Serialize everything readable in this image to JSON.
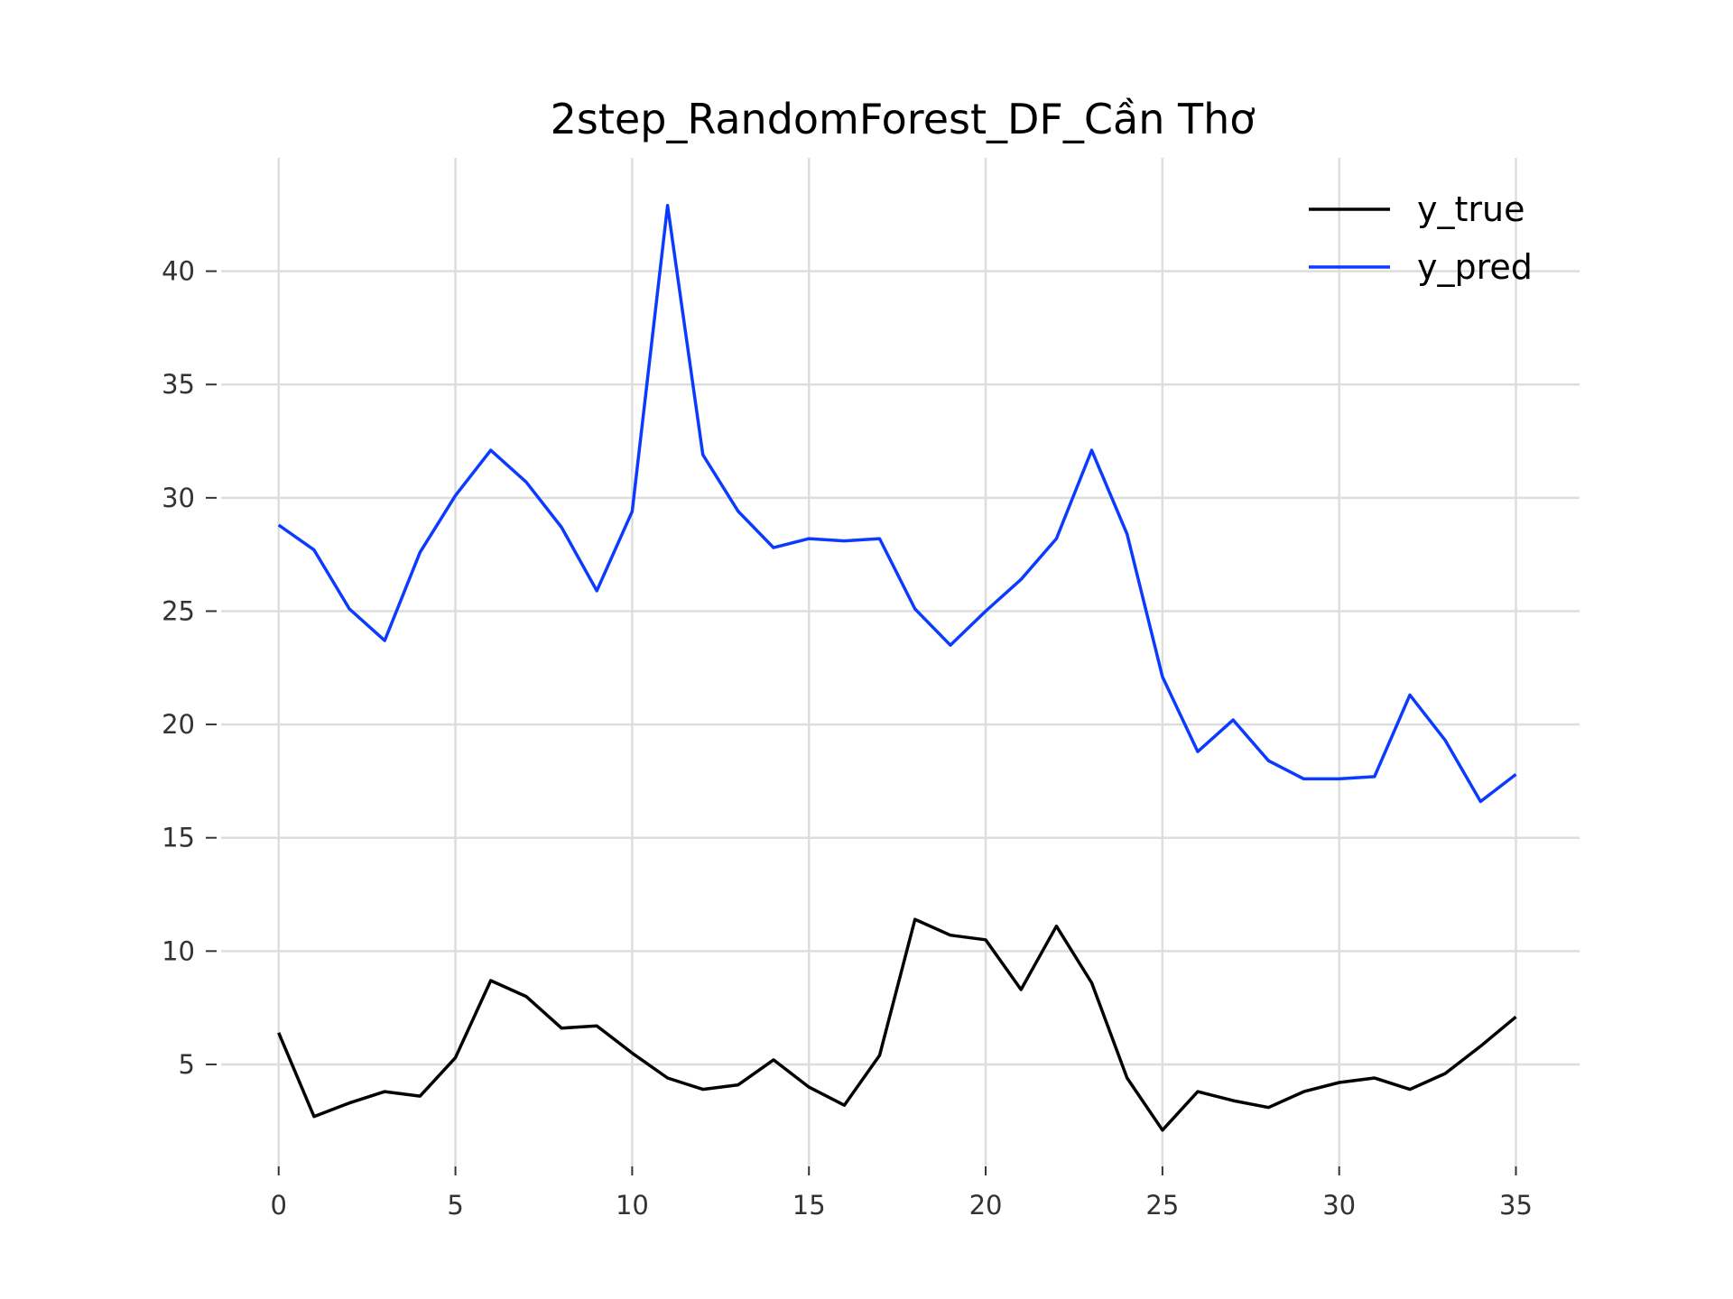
{
  "chart_data": {
    "type": "line",
    "title": "2step_RandomForest_DF_Cần Thơ",
    "xlabel": "",
    "ylabel": "",
    "x": [
      0,
      1,
      2,
      3,
      4,
      5,
      6,
      7,
      8,
      9,
      10,
      11,
      12,
      13,
      14,
      15,
      16,
      17,
      18,
      19,
      20,
      21,
      22,
      23,
      24,
      25,
      26,
      27,
      28,
      29,
      30,
      31,
      32,
      33,
      34,
      35
    ],
    "xticks": [
      0,
      5,
      10,
      15,
      20,
      25,
      30,
      35
    ],
    "yticks": [
      5,
      10,
      15,
      20,
      25,
      30,
      35,
      40
    ],
    "xlim": [
      -1.5,
      36.8
    ],
    "ylim": [
      0.5,
      45
    ],
    "grid": true,
    "legend_position": "top-right",
    "series": [
      {
        "name": "y_true",
        "color": "#000000",
        "values": [
          6.4,
          2.7,
          3.3,
          3.8,
          3.6,
          5.3,
          8.7,
          8.0,
          6.6,
          6.7,
          5.5,
          4.4,
          3.9,
          4.1,
          5.2,
          4.0,
          3.2,
          5.4,
          11.4,
          10.7,
          10.5,
          8.3,
          11.1,
          8.6,
          4.4,
          2.1,
          3.8,
          3.4,
          3.1,
          3.8,
          4.2,
          4.4,
          3.9,
          4.6,
          5.8,
          7.1
        ]
      },
      {
        "name": "y_pred",
        "color": "#0b3bff",
        "values": [
          28.8,
          27.7,
          25.1,
          23.7,
          27.6,
          30.1,
          32.1,
          30.7,
          28.7,
          25.9,
          29.4,
          42.9,
          31.9,
          29.4,
          27.8,
          28.2,
          28.1,
          28.2,
          25.1,
          23.5,
          25.0,
          26.4,
          28.2,
          32.1,
          28.4,
          22.1,
          18.8,
          20.2,
          18.4,
          17.6,
          17.6,
          17.7,
          21.3,
          19.3,
          16.6,
          17.8
        ]
      }
    ]
  }
}
